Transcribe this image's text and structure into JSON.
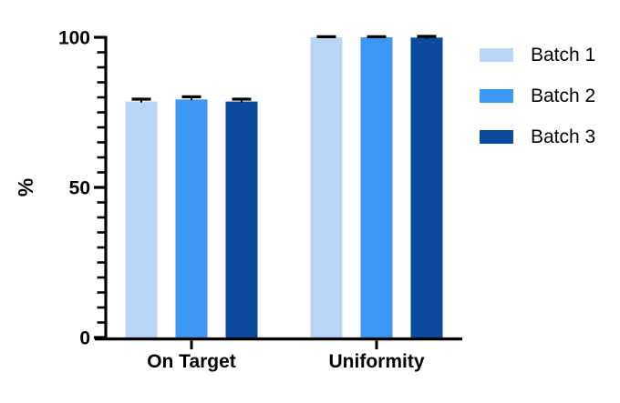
{
  "chart_data": {
    "type": "bar",
    "title": "",
    "categories": [
      "On Target",
      "Uniformity"
    ],
    "series": [
      {
        "name": "Batch 1",
        "color": "#B8D4F6",
        "values": [
          78.6,
          100
        ],
        "errors": [
          0.8,
          0.2
        ]
      },
      {
        "name": "Batch 2",
        "color": "#3D97F5",
        "values": [
          79.3,
          100
        ],
        "errors": [
          0.9,
          0.2
        ]
      },
      {
        "name": "Batch 3",
        "color": "#0A4B9F",
        "values": [
          78.6,
          99.9
        ],
        "errors": [
          0.8,
          0.4
        ]
      }
    ],
    "xlabel": "",
    "ylabel": "%",
    "ylim": [
      0,
      100
    ],
    "yticks_major": [
      0,
      50,
      100
    ],
    "ytick_minor_step": 5,
    "grid": false,
    "legend_position": "right",
    "axis_color": "#000000",
    "error_bar_color": "#000000",
    "background_color": "#FFFFFF"
  }
}
